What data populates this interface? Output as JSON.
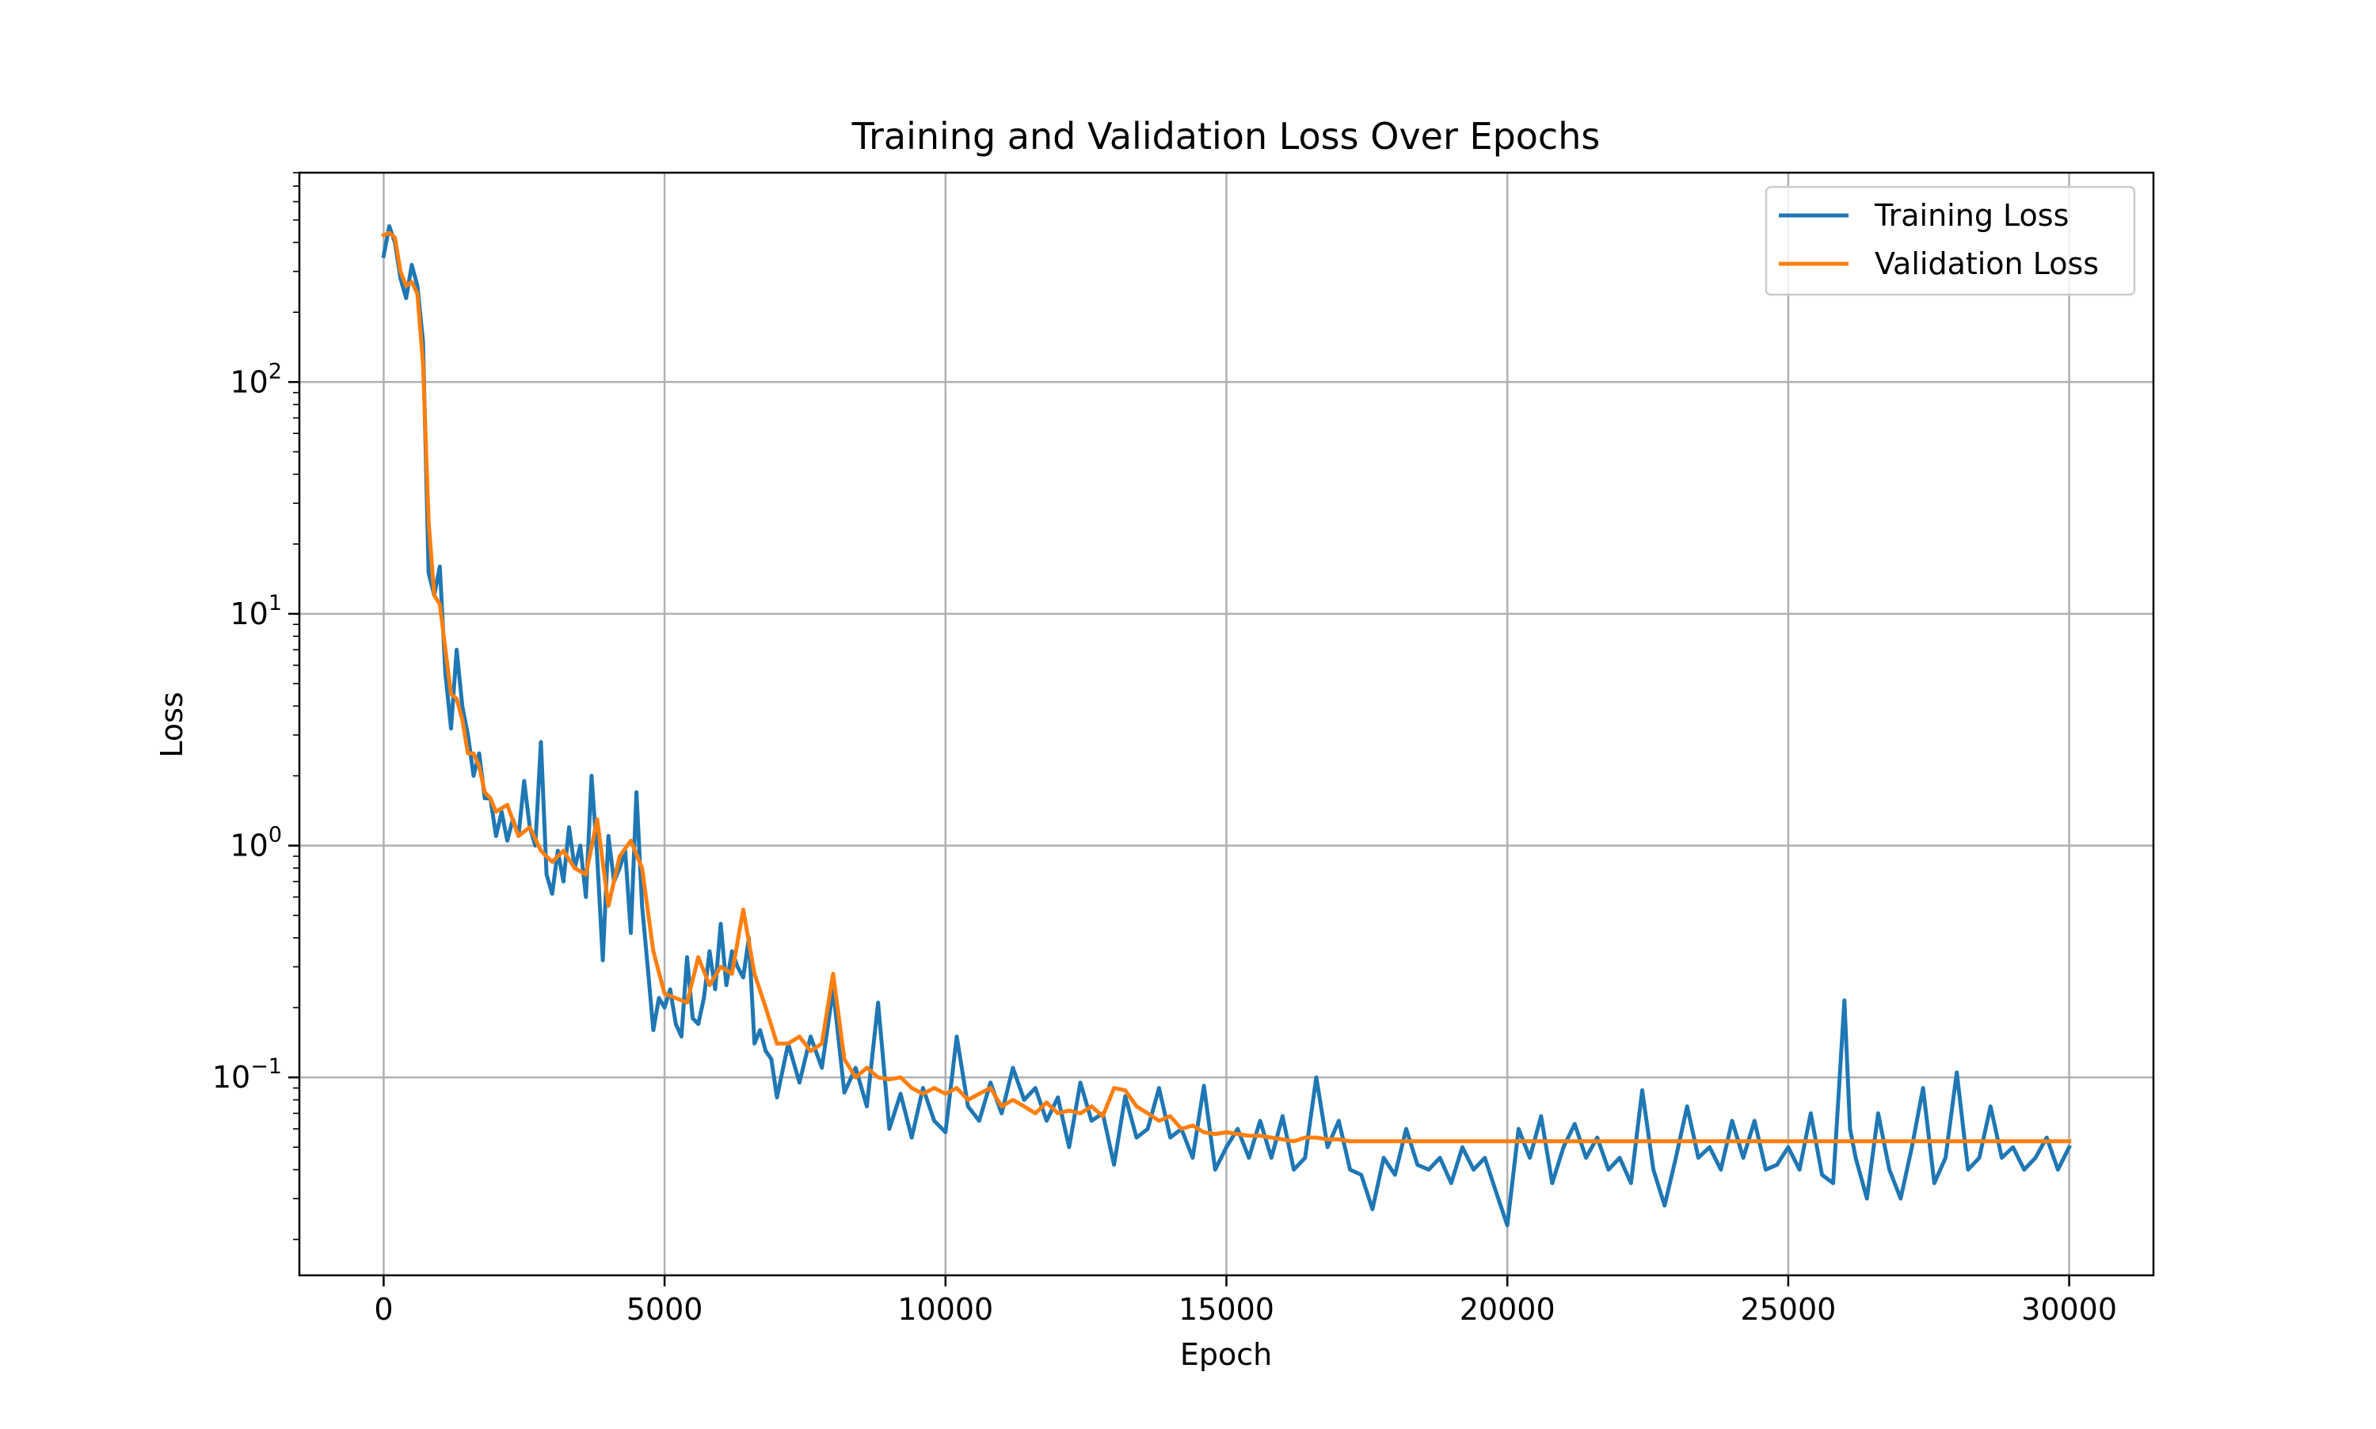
{
  "chart_data": {
    "type": "line",
    "title": "Training and Validation Loss Over Epochs",
    "xlabel": "Epoch",
    "ylabel": "Loss",
    "yscale": "log",
    "xlim": [
      -1500,
      31500
    ],
    "ylim": [
      0.014,
      800
    ],
    "grid": true,
    "legend_position": "top-right",
    "x_ticks": [
      0,
      5000,
      10000,
      15000,
      20000,
      25000,
      30000
    ],
    "x_tick_labels": [
      "0",
      "5000",
      "10000",
      "15000",
      "20000",
      "25000",
      "30000"
    ],
    "y_ticks": [
      {
        "value": 0.1,
        "base": "10",
        "exponent": "−1"
      },
      {
        "value": 1,
        "base": "10",
        "exponent": "0"
      },
      {
        "value": 10,
        "base": "10",
        "exponent": "1"
      },
      {
        "value": 100,
        "base": "10",
        "exponent": "2"
      }
    ],
    "colors": {
      "training": "#1f77b4",
      "validation": "#ff7f0e",
      "grid": "#b0b0b0"
    },
    "series": [
      {
        "name": "Training Loss",
        "color": "#1f77b4",
        "x": [
          0,
          100,
          200,
          300,
          400,
          500,
          600,
          700,
          800,
          900,
          1000,
          1100,
          1200,
          1300,
          1400,
          1500,
          1600,
          1700,
          1800,
          1900,
          2000,
          2100,
          2200,
          2300,
          2400,
          2500,
          2600,
          2700,
          2800,
          2900,
          3000,
          3100,
          3200,
          3300,
          3400,
          3500,
          3600,
          3700,
          3800,
          3900,
          4000,
          4100,
          4200,
          4300,
          4400,
          4500,
          4600,
          4700,
          4800,
          4900,
          5000,
          5100,
          5200,
          5300,
          5400,
          5500,
          5600,
          5700,
          5800,
          5900,
          6000,
          6100,
          6200,
          6300,
          6400,
          6500,
          6600,
          6700,
          6800,
          6900,
          7000,
          7200,
          7400,
          7600,
          7800,
          8000,
          8200,
          8400,
          8600,
          8800,
          9000,
          9200,
          9400,
          9600,
          9800,
          10000,
          10200,
          10400,
          10600,
          10800,
          11000,
          11200,
          11400,
          11600,
          11800,
          12000,
          12200,
          12400,
          12600,
          12800,
          13000,
          13200,
          13400,
          13600,
          13800,
          14000,
          14200,
          14400,
          14600,
          14800,
          15000,
          15200,
          15400,
          15600,
          15800,
          16000,
          16200,
          16400,
          16600,
          16800,
          17000,
          17200,
          17400,
          17600,
          17800,
          18000,
          18200,
          18400,
          18600,
          18800,
          19000,
          19200,
          19400,
          19600,
          19800,
          20000,
          20200,
          20400,
          20600,
          20800,
          21000,
          21200,
          21400,
          21600,
          21800,
          22000,
          22200,
          22400,
          22600,
          22800,
          23000,
          23200,
          23400,
          23600,
          23800,
          24000,
          24200,
          24400,
          24600,
          24800,
          25000,
          25200,
          25400,
          25600,
          25800,
          26000,
          26100,
          26200,
          26400,
          26600,
          26800,
          27000,
          27200,
          27400,
          27600,
          27800,
          28000,
          28200,
          28400,
          28600,
          28800,
          29000,
          29200,
          29400,
          29600,
          29800,
          30000
        ],
        "y": [
          350,
          470,
          400,
          280,
          230,
          320,
          260,
          150,
          15,
          12,
          16,
          5.5,
          3.2,
          7,
          4,
          3,
          2,
          2.5,
          1.6,
          1.6,
          1.1,
          1.4,
          1.05,
          1.3,
          1.1,
          1.9,
          1.2,
          1.0,
          2.8,
          0.75,
          0.62,
          0.95,
          0.7,
          1.2,
          0.8,
          1.0,
          0.6,
          2.0,
          0.9,
          0.32,
          1.1,
          0.7,
          0.8,
          0.95,
          0.42,
          1.7,
          0.55,
          0.3,
          0.16,
          0.22,
          0.2,
          0.24,
          0.17,
          0.15,
          0.33,
          0.18,
          0.17,
          0.22,
          0.35,
          0.24,
          0.46,
          0.25,
          0.35,
          0.3,
          0.27,
          0.4,
          0.14,
          0.16,
          0.13,
          0.12,
          0.082,
          0.14,
          0.095,
          0.15,
          0.11,
          0.24,
          0.086,
          0.11,
          0.075,
          0.21,
          0.06,
          0.085,
          0.055,
          0.09,
          0.065,
          0.058,
          0.15,
          0.075,
          0.065,
          0.095,
          0.07,
          0.11,
          0.08,
          0.09,
          0.065,
          0.082,
          0.05,
          0.095,
          0.065,
          0.07,
          0.042,
          0.083,
          0.055,
          0.06,
          0.09,
          0.055,
          0.06,
          0.045,
          0.092,
          0.04,
          0.05,
          0.06,
          0.045,
          0.065,
          0.045,
          0.068,
          0.04,
          0.045,
          0.1,
          0.05,
          0.065,
          0.04,
          0.038,
          0.027,
          0.045,
          0.038,
          0.06,
          0.042,
          0.04,
          0.045,
          0.035,
          0.05,
          0.04,
          0.045,
          0.032,
          0.023,
          0.06,
          0.045,
          0.068,
          0.035,
          0.05,
          0.063,
          0.045,
          0.055,
          0.04,
          0.045,
          0.035,
          0.088,
          0.04,
          0.028,
          0.045,
          0.075,
          0.045,
          0.05,
          0.04,
          0.065,
          0.045,
          0.065,
          0.04,
          0.042,
          0.05,
          0.04,
          0.07,
          0.038,
          0.035,
          0.215,
          0.06,
          0.045,
          0.03,
          0.07,
          0.04,
          0.03,
          0.05,
          0.09,
          0.035,
          0.045,
          0.105,
          0.04,
          0.045,
          0.075,
          0.045,
          0.05,
          0.04,
          0.045,
          0.055,
          0.04,
          0.05
        ]
      },
      {
        "name": "Validation Loss",
        "color": "#ff7f0e",
        "x": [
          0,
          100,
          200,
          300,
          400,
          500,
          600,
          700,
          800,
          900,
          1000,
          1100,
          1200,
          1300,
          1400,
          1500,
          1600,
          1700,
          1800,
          1900,
          2000,
          2200,
          2400,
          2600,
          2800,
          3000,
          3200,
          3400,
          3600,
          3800,
          4000,
          4200,
          4400,
          4600,
          4800,
          5000,
          5200,
          5400,
          5600,
          5800,
          6000,
          6200,
          6400,
          6600,
          6800,
          7000,
          7200,
          7400,
          7600,
          7800,
          8000,
          8200,
          8400,
          8600,
          8800,
          9000,
          9200,
          9400,
          9600,
          9800,
          10000,
          10200,
          10400,
          10600,
          10800,
          11000,
          11200,
          11400,
          11600,
          11800,
          12000,
          12200,
          12400,
          12600,
          12800,
          13000,
          13200,
          13400,
          13600,
          13800,
          14000,
          14200,
          14400,
          14600,
          14800,
          15000,
          15200,
          15400,
          15600,
          15800,
          16000,
          16200,
          16400,
          16600,
          16800,
          17000,
          17200,
          17400,
          17600,
          17800,
          18000,
          19000,
          20000,
          21000,
          22000,
          23000,
          24000,
          25000,
          26000,
          27000,
          28000,
          29000,
          30000
        ],
        "y": [
          430,
          440,
          420,
          300,
          260,
          270,
          240,
          120,
          25,
          12,
          11,
          7,
          4.5,
          4.3,
          3.5,
          2.5,
          2.5,
          2.2,
          1.7,
          1.6,
          1.4,
          1.5,
          1.1,
          1.2,
          0.95,
          0.85,
          0.95,
          0.8,
          0.75,
          1.3,
          0.55,
          0.9,
          1.05,
          0.8,
          0.35,
          0.23,
          0.22,
          0.21,
          0.33,
          0.25,
          0.3,
          0.28,
          0.53,
          0.28,
          0.2,
          0.14,
          0.14,
          0.15,
          0.13,
          0.14,
          0.28,
          0.12,
          0.1,
          0.11,
          0.1,
          0.098,
          0.1,
          0.09,
          0.085,
          0.09,
          0.085,
          0.09,
          0.08,
          0.085,
          0.09,
          0.075,
          0.08,
          0.075,
          0.07,
          0.078,
          0.07,
          0.072,
          0.07,
          0.075,
          0.068,
          0.09,
          0.088,
          0.075,
          0.07,
          0.065,
          0.068,
          0.06,
          0.062,
          0.058,
          0.057,
          0.058,
          0.057,
          0.056,
          0.056,
          0.055,
          0.054,
          0.053,
          0.055,
          0.055,
          0.054,
          0.054,
          0.053,
          0.053,
          0.053,
          0.053,
          0.053,
          0.053,
          0.053,
          0.053,
          0.053,
          0.053,
          0.053,
          0.053,
          0.053,
          0.053,
          0.053,
          0.053,
          0.053
        ]
      }
    ]
  }
}
